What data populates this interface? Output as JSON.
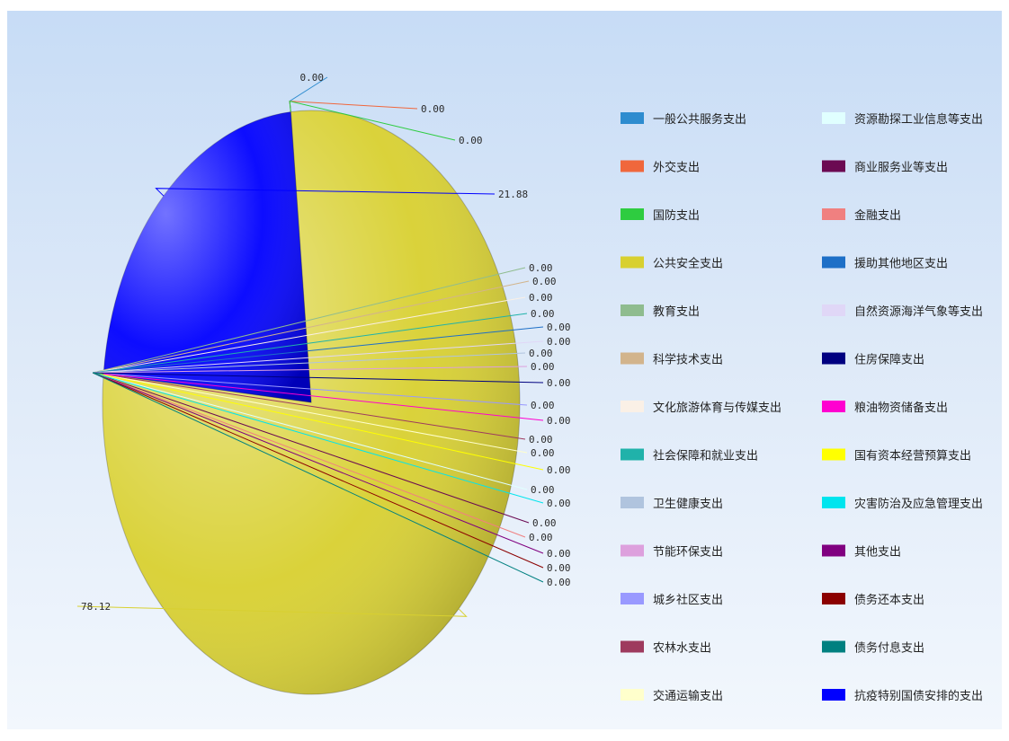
{
  "chart_data": {
    "type": "pie",
    "title": "",
    "legend_position": "right",
    "style": "3d-shaded",
    "categories": [
      "一般公共服务支出",
      "外交支出",
      "国防支出",
      "公共安全支出",
      "教育支出",
      "科学技术支出",
      "文化旅游体育与传媒支出",
      "社会保障和就业支出",
      "卫生健康支出",
      "节能环保支出",
      "城乡社区支出",
      "农林水支出",
      "交通运输支出",
      "资源勘探工业信息等支出",
      "商业服务业等支出",
      "金融支出",
      "援助其他地区支出",
      "自然资源海洋气象等支出",
      "住房保障支出",
      "粮油物资储备支出",
      "国有资本经营预算支出",
      "灾害防治及应急管理支出",
      "其他支出",
      "债务还本支出",
      "债务付息支出",
      "抗疫特别国债安排的支出"
    ],
    "values": [
      0.0,
      0.0,
      0.0,
      78.12,
      0.0,
      0.0,
      0.0,
      0.0,
      0.0,
      0.0,
      0.0,
      0.0,
      0.0,
      0.0,
      0.0,
      0.0,
      0.0,
      0.0,
      0.0,
      0.0,
      0.0,
      0.0,
      0.0,
      0.0,
      0.0,
      21.88
    ],
    "data_labels": [
      "0.00",
      "0.00",
      "0.00",
      "78.12",
      "0.00",
      "0.00",
      "0.00",
      "0.00",
      "0.00",
      "0.00",
      "0.00",
      "0.00",
      "0.00",
      "0.00",
      "0.00",
      "0.00",
      "0.00",
      "0.00",
      "0.00",
      "0.00",
      "0.00",
      "0.00",
      "0.00",
      "0.00",
      "0.00",
      "21.88"
    ],
    "colors": [
      "#2e8ccf",
      "#f0673c",
      "#2ecc40",
      "#d8d030",
      "#8fbc8f",
      "#d2b48c",
      "#faf0e6",
      "#20b2aa",
      "#b0c4de",
      "#dda0dd",
      "#9999ff",
      "#9e3a5e",
      "#ffffcc",
      "#e0ffff",
      "#6b0a52",
      "#f08080",
      "#1d6fc7",
      "#e0d7f7",
      "#000080",
      "#ff00d0",
      "#ffff00",
      "#00e5ee",
      "#800080",
      "#8b0000",
      "#008080",
      "#0000ff"
    ]
  }
}
